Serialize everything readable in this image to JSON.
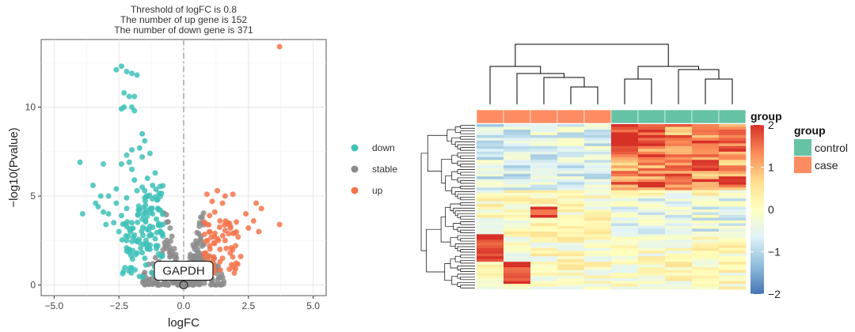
{
  "volcano": {
    "title_lines": [
      "Threshold of logFC is 0.8",
      "The number of up gene is 152",
      "The number of down gene is 371"
    ],
    "legend": [
      {
        "label": "down",
        "color": "#3EC1B9"
      },
      {
        "label": "stable",
        "color": "#8C8C8C"
      },
      {
        "label": "up",
        "color": "#F4744B"
      }
    ],
    "annotation_label": "GAPDH"
  },
  "heatmap": {
    "group_title": "group",
    "groups": [
      {
        "label": "control",
        "color": "#66C2A5"
      },
      {
        "label": "case",
        "color": "#FC8D62"
      }
    ],
    "colorbar": {
      "ticks": [
        "2",
        "1",
        "0",
        "−1",
        "−2"
      ],
      "colors": [
        "#D73027",
        "#FC8D59",
        "#FEE090",
        "#FFFFBF",
        "#E0F3F8",
        "#91BFDB",
        "#4575B4"
      ]
    }
  },
  "chart_data": [
    {
      "type": "scatter",
      "title": "Threshold of logFC is 0.8 / The number of up gene is 152 / The number of down gene is 371",
      "xlabel": "logFC",
      "ylabel": "−log10(Pvalue)",
      "xlim": [
        -5.5,
        5.5
      ],
      "ylim": [
        -0.6,
        13.8
      ],
      "xticks": [
        -5.0,
        -2.5,
        0.0,
        2.5,
        5.0
      ],
      "xtick_labels": [
        "−5.0",
        "−2.5",
        "0.0",
        "2.5",
        "5.0"
      ],
      "yticks": [
        0,
        5,
        10
      ],
      "ytick_labels": [
        "0",
        "5",
        "10"
      ],
      "threshold_logFC": 0.8,
      "up_count": 152,
      "down_count": 371,
      "grid": true,
      "legend_position": "right",
      "series": [
        {
          "name": "down",
          "color": "#3EC1B9",
          "points": [
            [
              -4.0,
              6.9
            ],
            [
              -3.5,
              5.6
            ],
            [
              -3.2,
              5.0
            ],
            [
              -3.3,
              4.4
            ],
            [
              -3.1,
              4.1
            ],
            [
              -3.9,
              4.0
            ],
            [
              -2.4,
              12.3
            ],
            [
              -2.6,
              12.1
            ],
            [
              -2.2,
              12.0
            ],
            [
              -2.0,
              11.9
            ],
            [
              -1.8,
              11.8
            ],
            [
              -2.3,
              10.8
            ],
            [
              -2.1,
              10.6
            ],
            [
              -1.9,
              10.6
            ],
            [
              -2.3,
              10.0
            ],
            [
              -2.0,
              10.0
            ],
            [
              -1.9,
              9.8
            ],
            [
              -2.4,
              9.9
            ],
            [
              -1.6,
              8.5
            ],
            [
              -1.5,
              8.1
            ],
            [
              -1.7,
              7.7
            ],
            [
              -1.3,
              7.4
            ],
            [
              -2.0,
              7.6
            ],
            [
              -2.2,
              7.3
            ],
            [
              -1.6,
              7.2
            ],
            [
              -2.1,
              6.9
            ],
            [
              -3.1,
              6.8
            ],
            [
              -2.4,
              6.8
            ],
            [
              -2.0,
              6.5
            ],
            [
              -1.1,
              6.3
            ],
            [
              -1.4,
              6.0
            ],
            [
              -1.9,
              5.9
            ],
            [
              -2.6,
              5.4
            ],
            [
              -1.6,
              5.5
            ],
            [
              -1.2,
              5.6
            ],
            [
              -1.5,
              5.3
            ],
            [
              -1.8,
              5.3
            ],
            [
              -2.9,
              5.0
            ],
            [
              -2.2,
              4.9
            ],
            [
              -1.5,
              4.9
            ],
            [
              -1.0,
              4.8
            ],
            [
              -2.6,
              4.6
            ],
            [
              -3.4,
              4.6
            ],
            [
              -2.9,
              4.0
            ],
            [
              -2.7,
              3.5
            ],
            [
              -3.0,
              3.4
            ],
            [
              -2.5,
              3.0
            ],
            [
              -2.2,
              2.5
            ],
            [
              -2.1,
              2.0
            ],
            [
              -1.8,
              1.8
            ],
            [
              -1.5,
              1.5
            ],
            [
              -1.3,
              2.0
            ],
            [
              -1.0,
              1.2
            ],
            [
              -1.1,
              2.6
            ],
            [
              -0.9,
              3.0
            ],
            [
              -1.3,
              3.3
            ],
            [
              -1.6,
              3.7
            ],
            [
              -2.0,
              3.5
            ],
            [
              -1.7,
              4.2
            ],
            [
              -1.2,
              4.0
            ],
            [
              -0.9,
              4.2
            ],
            [
              -2.4,
              3.9
            ],
            [
              -2.2,
              4.3
            ],
            [
              -1.9,
              2.8
            ],
            [
              -1.4,
              2.3
            ],
            [
              -1.0,
              2.2
            ],
            [
              -0.85,
              1.6
            ]
          ]
        },
        {
          "name": "up",
          "color": "#F4744B",
          "points": [
            [
              3.7,
              13.4
            ],
            [
              1.3,
              5.3
            ],
            [
              0.9,
              5.1
            ],
            [
              1.6,
              5.0
            ],
            [
              1.9,
              5.1
            ],
            [
              1.1,
              4.7
            ],
            [
              1.5,
              4.6
            ],
            [
              2.8,
              4.6
            ],
            [
              3.0,
              4.3
            ],
            [
              2.4,
              4.0
            ],
            [
              2.7,
              3.6
            ],
            [
              2.9,
              3.0
            ],
            [
              2.5,
              3.2
            ],
            [
              3.7,
              3.4
            ],
            [
              1.0,
              3.9
            ],
            [
              1.4,
              3.6
            ],
            [
              0.9,
              3.4
            ],
            [
              1.8,
              3.2
            ],
            [
              1.2,
              2.9
            ],
            [
              2.1,
              2.7
            ],
            [
              1.6,
              2.5
            ],
            [
              2.0,
              2.2
            ],
            [
              1.4,
              2.0
            ],
            [
              1.0,
              2.2
            ],
            [
              0.85,
              1.8
            ],
            [
              1.5,
              1.5
            ],
            [
              1.8,
              1.8
            ],
            [
              1.1,
              1.3
            ],
            [
              2.2,
              1.6
            ],
            [
              0.9,
              1.2
            ],
            [
              1.3,
              2.6
            ],
            [
              1.7,
              3.5
            ],
            [
              1.2,
              4.1
            ],
            [
              1.9,
              2.9
            ]
          ]
        },
        {
          "name": "stable",
          "color": "#8C8C8C"
        }
      ],
      "annotations": [
        {
          "label": "GAPDH",
          "x": 0.0,
          "y": 0.0
        }
      ]
    },
    {
      "type": "heatmap",
      "columns": 10,
      "rows": 60,
      "value_range": [
        -2,
        2
      ],
      "column_groups": [
        "case",
        "case",
        "case",
        "case",
        "case",
        "control",
        "control",
        "control",
        "control",
        "control"
      ],
      "legend_title": "group",
      "legend_position": "right",
      "colorbar_ticks": [
        2,
        1,
        0,
        -1,
        -2
      ],
      "dendrogram": "rows and columns"
    }
  ]
}
